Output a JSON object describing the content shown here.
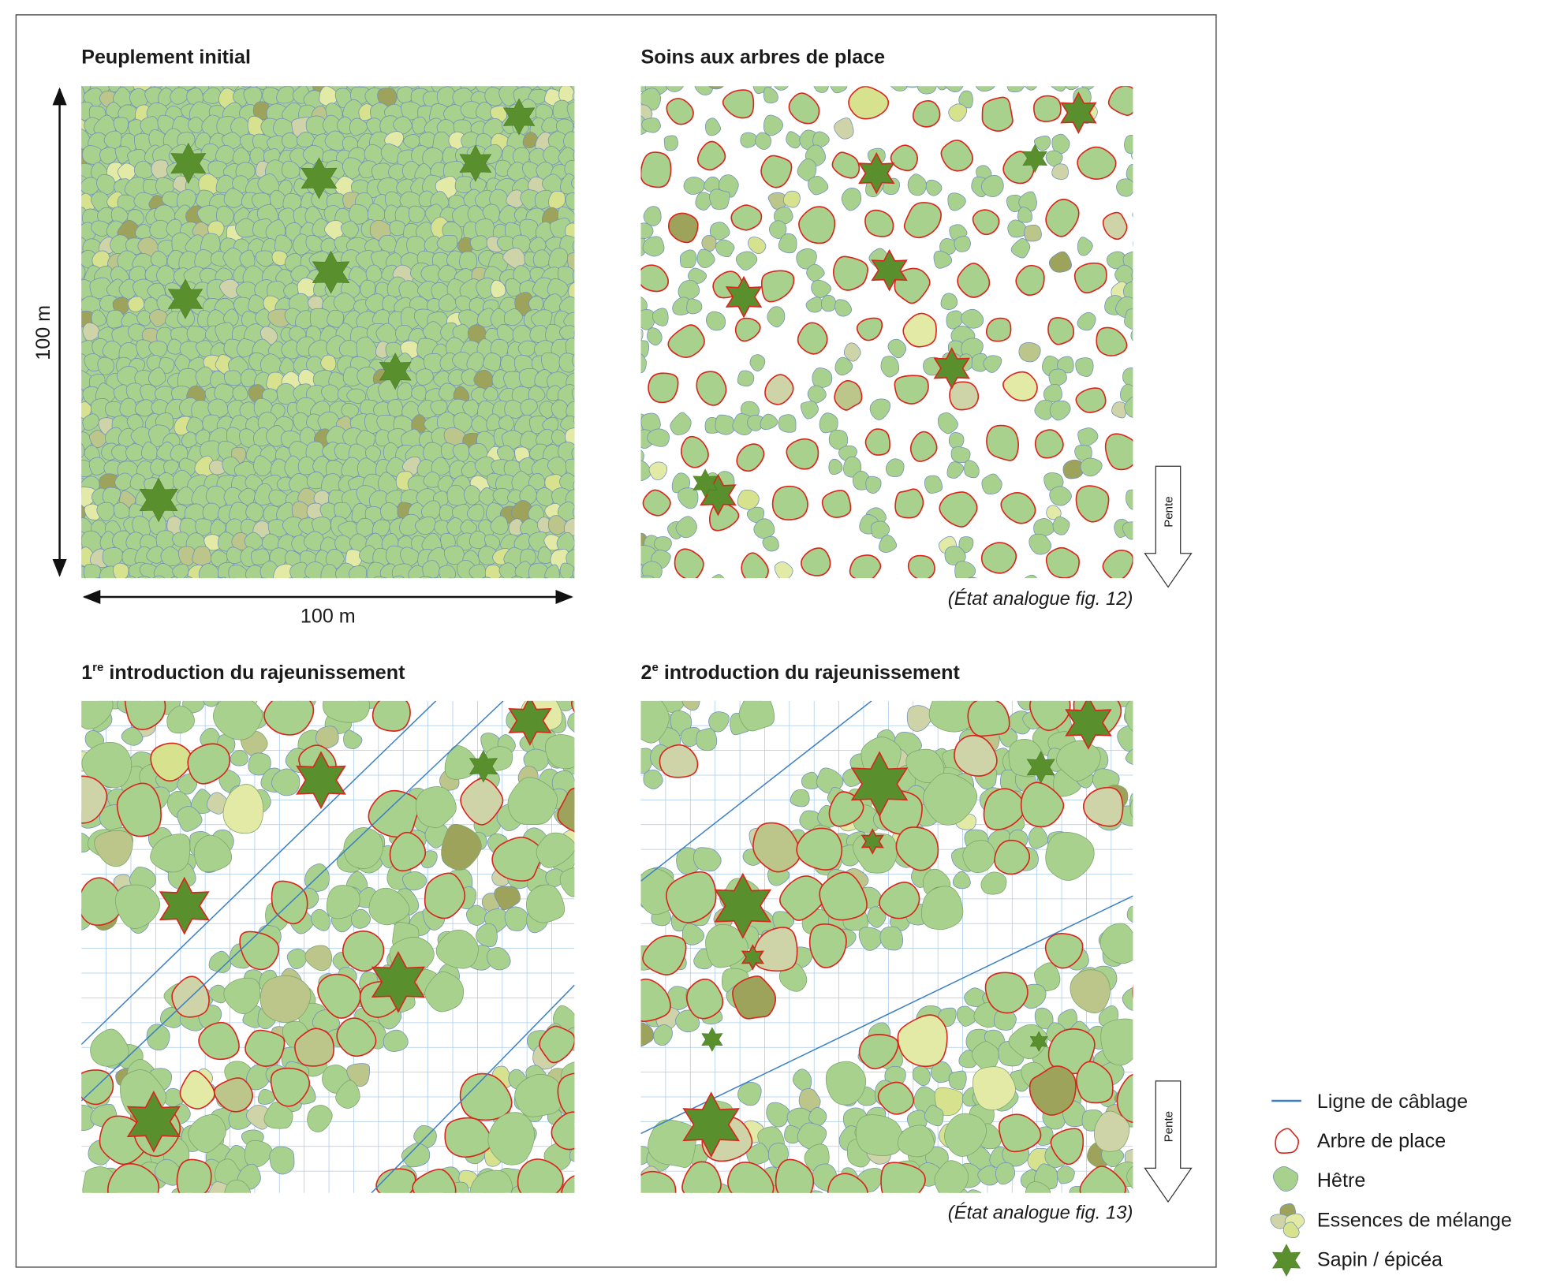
{
  "panels": [
    {
      "title": "Peuplement initial"
    },
    {
      "title": "Soins aux arbres de place",
      "note": "(État analogue fig. 12)"
    },
    {
      "title": {
        "number": "1",
        "superscript": "re",
        "text": " introduction du rajeunissement"
      }
    },
    {
      "title": {
        "number": "2",
        "superscript": "e",
        "text": " introduction du rajeunissement"
      },
      "note": "(État analogue fig. 13)"
    }
  ],
  "dimensions": {
    "height": "100 m",
    "width": "100 m"
  },
  "slope_label": "Pente",
  "legend": [
    "Ligne de câblage",
    "Arbre de place",
    "Hêtre",
    "Essences de mélange",
    "Sapin / épicéa"
  ]
}
